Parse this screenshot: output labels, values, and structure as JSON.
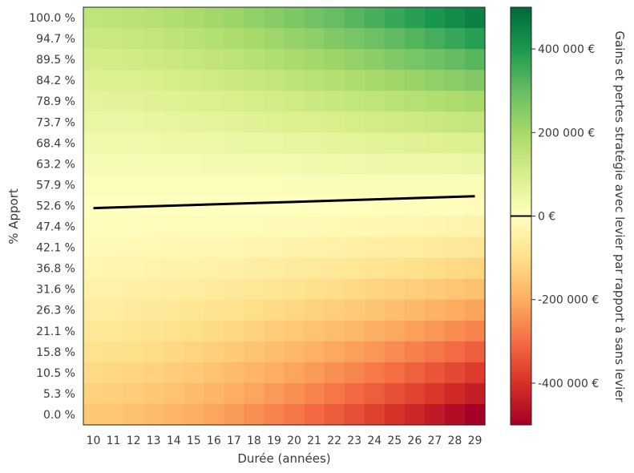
{
  "chart_data": {
    "type": "heatmap",
    "xlabel": "Durée (années)",
    "ylabel": "% Apport",
    "colorbar_label": "Gains et pertes stratégie avec levier par rapport à sans levier",
    "x_categories": [
      "10",
      "11",
      "12",
      "13",
      "14",
      "15",
      "16",
      "17",
      "18",
      "19",
      "20",
      "21",
      "22",
      "23",
      "24",
      "25",
      "26",
      "27",
      "28",
      "29"
    ],
    "y_categories": [
      "100.0 %",
      "94.7 %",
      "89.5 %",
      "84.2 %",
      "78.9 %",
      "73.7 %",
      "68.4 %",
      "63.2 %",
      "57.9 %",
      "52.6 %",
      "47.4 %",
      "42.1 %",
      "36.8 %",
      "31.6 %",
      "26.3 %",
      "21.1 %",
      "15.8 %",
      "10.5 %",
      "5.3 %",
      "0.0 %"
    ],
    "colorbar": {
      "min": -500000,
      "max": 500000,
      "colormap": "RdYlGn",
      "ticks": [
        -400000,
        -200000,
        0,
        200000,
        400000
      ],
      "tick_labels": [
        "-400 000 €",
        "-200 000 €",
        "0 €",
        "200 000 €",
        "400 000 €"
      ],
      "marked_value": 0
    },
    "value_model": {
      "note_values": "cell value at apport a% and duration d years",
      "pos_top_min": 150000,
      "pos_top_max": 450000,
      "neg_bottom_min": -150000,
      "neg_bottom_max": -500000
    },
    "breakeven_line": {
      "label": "0 €",
      "x": [
        "10",
        "29"
      ],
      "y_percent": [
        52.0,
        55.0
      ],
      "color": "#000000"
    }
  }
}
